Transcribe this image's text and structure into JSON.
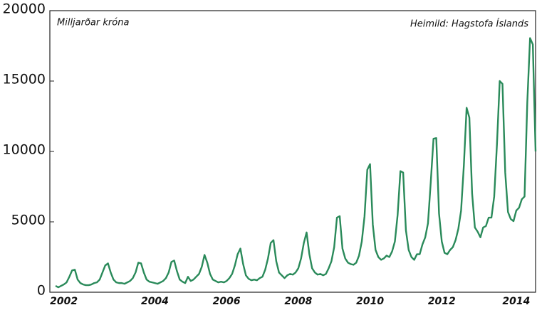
{
  "chart_data": {
    "type": "line",
    "annotations": [
      "Milljarðar króna",
      "Heimild: Hagstofa Íslands"
    ],
    "categories": [
      null,
      null,
      null,
      "2002",
      null,
      null,
      null,
      null,
      null,
      null,
      null,
      null,
      null,
      null,
      null,
      null,
      null,
      null,
      null,
      null,
      null,
      null,
      null,
      null,
      null,
      null,
      null,
      null,
      null,
      null,
      null,
      null,
      null,
      null,
      null,
      null,
      "2004",
      null,
      null,
      null,
      null,
      null,
      null,
      null,
      null,
      null,
      null,
      null,
      null,
      null,
      null,
      null,
      null,
      null,
      null,
      null,
      null,
      null,
      null,
      null,
      null,
      null,
      "2006",
      null,
      null,
      null,
      null,
      null,
      null,
      null,
      null,
      null,
      null,
      null,
      null,
      null,
      null,
      null,
      null,
      null,
      null,
      null,
      null,
      null,
      null,
      null,
      null,
      null,
      "2008",
      null,
      null,
      null,
      null,
      null,
      null,
      null,
      null,
      null,
      null,
      null,
      null,
      null,
      null,
      null,
      null,
      null,
      null,
      null,
      null,
      null,
      null,
      null,
      null,
      null,
      "2010",
      null,
      null,
      null,
      null,
      null,
      null,
      null,
      null,
      null,
      null,
      null,
      null,
      null,
      null,
      null,
      null,
      null,
      null,
      null,
      null,
      null,
      null,
      null,
      null,
      null,
      "2012",
      null,
      null,
      null,
      null,
      null,
      null,
      null,
      null,
      null,
      null,
      null,
      null,
      null,
      null,
      null,
      null,
      null,
      null,
      null,
      null,
      null,
      null,
      null,
      null,
      null,
      null,
      "2014",
      null,
      null,
      null,
      null,
      null,
      null,
      null
    ],
    "series": [
      {
        "color": "#2a8a5a",
        "values": [
          450,
          350,
          450,
          550,
          700,
          1100,
          1550,
          1600,
          900,
          650,
          550,
          500,
          500,
          550,
          650,
          700,
          900,
          1400,
          1900,
          2050,
          1400,
          900,
          700,
          650,
          650,
          600,
          700,
          800,
          1000,
          1400,
          2100,
          2050,
          1400,
          900,
          750,
          700,
          650,
          600,
          700,
          800,
          1000,
          1400,
          2150,
          2250,
          1500,
          900,
          750,
          650,
          1100,
          800,
          900,
          1100,
          1300,
          1800,
          2650,
          2100,
          1300,
          900,
          800,
          700,
          750,
          700,
          800,
          1000,
          1300,
          1900,
          2700,
          3100,
          2000,
          1200,
          950,
          850,
          900,
          850,
          1000,
          1100,
          1600,
          2400,
          3500,
          3700,
          2200,
          1400,
          1200,
          1000,
          1200,
          1300,
          1250,
          1400,
          1700,
          2400,
          3500,
          4250,
          2700,
          1700,
          1400,
          1250,
          1300,
          1200,
          1300,
          1700,
          2200,
          3200,
          5300,
          5400,
          3100,
          2400,
          2100,
          2000,
          1950,
          2100,
          2600,
          3600,
          5400,
          8700,
          9100,
          4800,
          3000,
          2500,
          2300,
          2400,
          2600,
          2500,
          2900,
          3600,
          5500,
          8600,
          8500,
          4400,
          3000,
          2500,
          2300,
          2700,
          2700,
          3400,
          3900,
          4900,
          7800,
          10900,
          10950,
          5600,
          3600,
          2800,
          2700,
          3000,
          3200,
          3700,
          4500,
          5800,
          9000,
          13100,
          12400,
          7000,
          4600,
          4300,
          3900,
          4600,
          4700,
          5300,
          5300,
          6800,
          10500,
          15000,
          14800,
          8500,
          5700,
          5200,
          5050,
          5800,
          6000,
          6600,
          6800,
          13500,
          18050,
          17600,
          10000
        ]
      }
    ],
    "ylim": [
      0,
      20000
    ],
    "yticks": [
      0,
      5000,
      10000,
      15000,
      20000
    ],
    "grid": false
  }
}
